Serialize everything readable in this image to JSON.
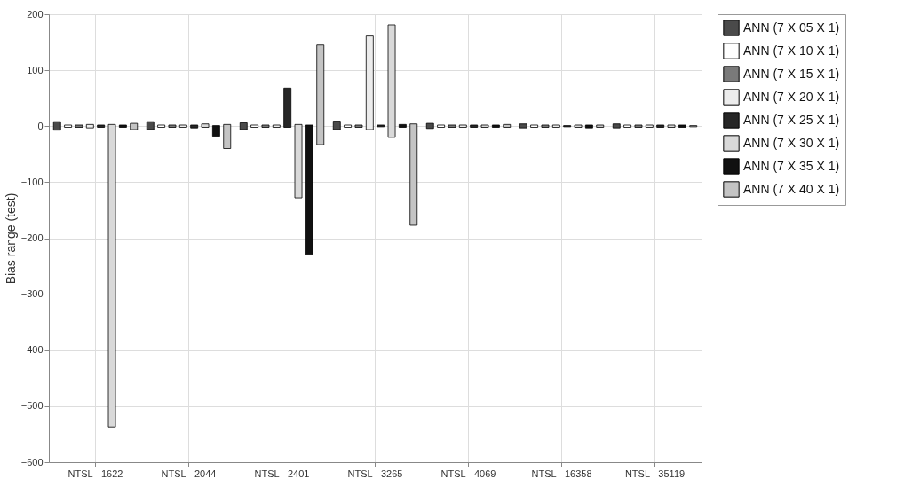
{
  "chart_data": {
    "type": "bar",
    "ylabel": "Bias range (test)",
    "categories": [
      "NTSL - 1622",
      "NTSL - 2044",
      "NTSL - 2401",
      "NTSL - 3265",
      "NTSL - 4069",
      "NTSL - 16358",
      "NTSL - 35119"
    ],
    "series": [
      {
        "name": "ANN (7 X 05 X 1)",
        "color": "#4a4a4a",
        "base": [
          -7,
          -6,
          -6,
          -6,
          -4,
          -3,
          -3
        ],
        "values": [
          15,
          14,
          12,
          15,
          9,
          7,
          7
        ]
      },
      {
        "name": "ANN (7 X 10 X 1)",
        "color": "#ffffff",
        "base": [
          -2,
          -2,
          -2,
          -2,
          -2,
          -2,
          -2
        ],
        "values": [
          4,
          4,
          4,
          4,
          4,
          4,
          4
        ]
      },
      {
        "name": "ANN (7 X 15 X 1)",
        "color": "#7a7a7a",
        "base": [
          -2,
          -2,
          -2,
          -2,
          -2,
          -2,
          -2
        ],
        "values": [
          4,
          4,
          4,
          4,
          4,
          4,
          4
        ]
      },
      {
        "name": "ANN (7 X 20 X 1)",
        "color": "#ececec",
        "base": [
          -3,
          -2,
          -2,
          -6,
          -2,
          -2,
          -2
        ],
        "values": [
          6,
          4,
          4,
          167,
          4,
          4,
          4
        ]
      },
      {
        "name": "ANN (7 X 25 X 1)",
        "color": "#262626",
        "base": [
          -2,
          -3,
          -2,
          -1,
          -2,
          -1,
          -2
        ],
        "values": [
          4,
          5,
          70,
          3,
          4,
          2,
          4
        ]
      },
      {
        "name": "ANN (7 X 30 X 1)",
        "color": "#d9d9d9",
        "base": [
          -537,
          -2,
          -128,
          -20,
          -2,
          -2,
          -2
        ],
        "values": [
          540,
          6,
          131,
          201,
          4,
          4,
          4
        ]
      },
      {
        "name": "ANN (7 X 35 X 1)",
        "color": "#111111",
        "base": [
          -2,
          -18,
          -229,
          -2,
          -2,
          -3,
          -2
        ],
        "values": [
          4,
          19,
          231,
          5,
          4,
          5,
          4
        ]
      },
      {
        "name": "ANN (7 X 40 X 1)",
        "color": "#c4c4c4",
        "base": [
          -6,
          -40,
          -33,
          -177,
          -2,
          -2,
          -1
        ],
        "values": [
          11,
          43,
          178,
          181,
          5,
          4,
          2
        ]
      }
    ],
    "ylim": [
      -600,
      200
    ],
    "yticks": [
      -600,
      -500,
      -400,
      -300,
      -200,
      -100,
      0,
      100,
      200
    ],
    "grid": true,
    "legend": "right"
  }
}
